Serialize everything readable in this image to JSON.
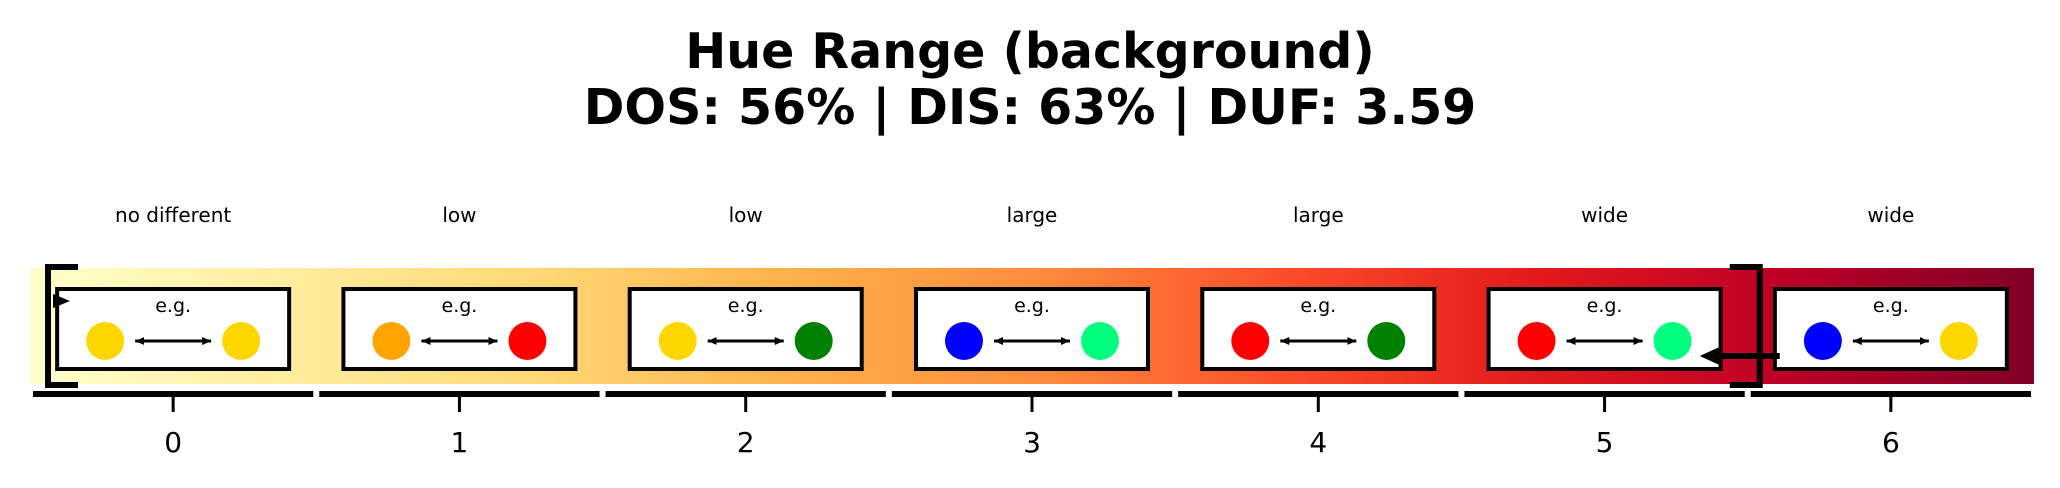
{
  "title": {
    "line1": "Hue Range (background)",
    "line2": "DOS: 56% | DIS: 63% | DUF: 3.59"
  },
  "chart_data": {
    "type": "other",
    "description_scale": "hue range",
    "gradient_colors": [
      "#ffffcc",
      "#ffeda0",
      "#fed976",
      "#feb24c",
      "#fd8d3c",
      "#fc4e2a",
      "#e31a1c",
      "#bd0026",
      "#800026"
    ],
    "segments": [
      {
        "tick": "0",
        "label": "no different",
        "example_label": "e.g.",
        "colors": [
          "#FFD700",
          "#FFD700"
        ]
      },
      {
        "tick": "1",
        "label": "low",
        "example_label": "e.g.",
        "colors": [
          "#FFA500",
          "#FF0000"
        ]
      },
      {
        "tick": "2",
        "label": "low",
        "example_label": "e.g.",
        "colors": [
          "#FFD700",
          "#008000"
        ]
      },
      {
        "tick": "3",
        "label": "large",
        "example_label": "e.g.",
        "colors": [
          "#0000FF",
          "#00FF7F"
        ]
      },
      {
        "tick": "4",
        "label": "large",
        "example_label": "e.g.",
        "colors": [
          "#FF0000",
          "#008000"
        ]
      },
      {
        "tick": "5",
        "label": "wide",
        "example_label": "e.g.",
        "colors": [
          "#FF0000",
          "#00FF7F"
        ]
      },
      {
        "tick": "6",
        "label": "wide",
        "example_label": "e.g.",
        "colors": [
          "#0000FF",
          "#FFD700"
        ]
      }
    ],
    "range_bracket": {
      "from": 0,
      "to": 6
    },
    "arrow_target": 6
  }
}
